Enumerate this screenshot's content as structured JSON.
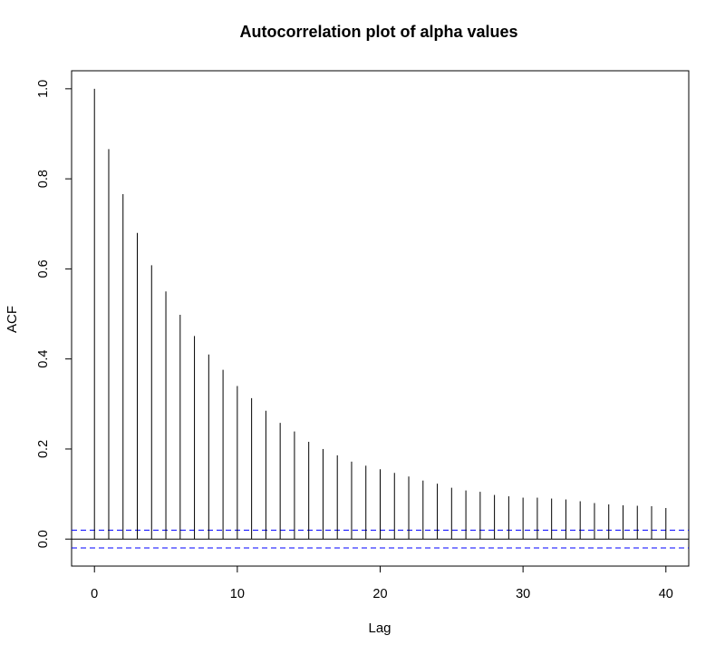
{
  "chart_data": {
    "type": "bar",
    "title": "Autocorrelation plot of alpha values",
    "xlabel": "Lag",
    "ylabel": "ACF",
    "xlim": [
      -1.6,
      41.6
    ],
    "ylim": [
      -0.06,
      1.04
    ],
    "x_ticks": [
      0,
      10,
      20,
      30,
      40
    ],
    "x_tick_labels": [
      "0",
      "10",
      "20",
      "30",
      "40"
    ],
    "y_ticks": [
      0.0,
      0.2,
      0.4,
      0.6,
      0.8,
      1.0
    ],
    "y_tick_labels": [
      "0.0",
      "0.2",
      "0.4",
      "0.6",
      "0.8",
      "1.0"
    ],
    "lags": [
      0,
      1,
      2,
      3,
      4,
      5,
      6,
      7,
      8,
      9,
      10,
      11,
      12,
      13,
      14,
      15,
      16,
      17,
      18,
      19,
      20,
      21,
      22,
      23,
      24,
      25,
      26,
      27,
      28,
      29,
      30,
      31,
      32,
      33,
      34,
      35,
      36,
      37,
      38,
      39,
      40
    ],
    "acf": [
      1.0,
      0.866,
      0.766,
      0.68,
      0.608,
      0.55,
      0.498,
      0.451,
      0.41,
      0.376,
      0.34,
      0.313,
      0.285,
      0.258,
      0.239,
      0.216,
      0.2,
      0.186,
      0.172,
      0.163,
      0.155,
      0.147,
      0.139,
      0.13,
      0.123,
      0.114,
      0.108,
      0.105,
      0.098,
      0.095,
      0.092,
      0.092,
      0.09,
      0.088,
      0.084,
      0.08,
      0.077,
      0.075,
      0.074,
      0.073,
      0.069
    ],
    "confidence_bounds": [
      0.0198,
      -0.0198
    ],
    "zero_line": 0,
    "colors": {
      "bars": "#000000",
      "confidence": "#0000ff",
      "frame": "#000000"
    }
  }
}
